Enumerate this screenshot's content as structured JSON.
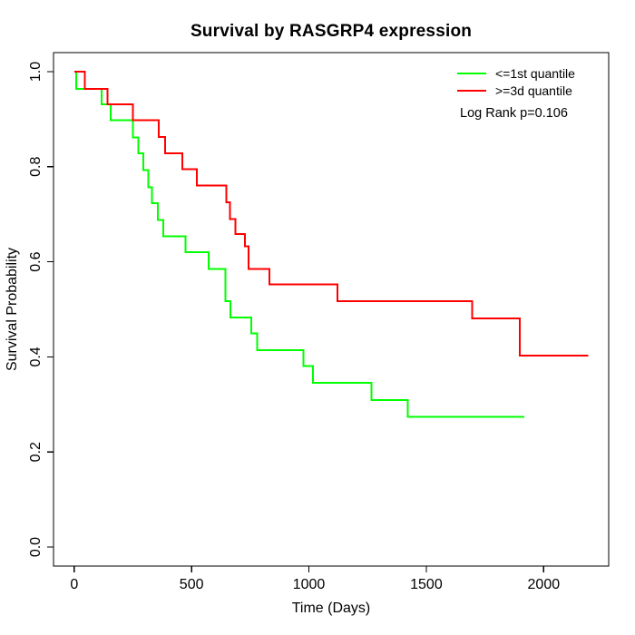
{
  "page": {
    "title": "Survival by RASGRP4 expression"
  },
  "legend": {
    "annotation": "Log Rank p=0.106"
  },
  "chart_data": {
    "type": "line",
    "subtype": "kaplan_meier_step_curve",
    "title": "Survival by RASGRP4 expression",
    "xlabel": "Time (Days)",
    "ylabel": "Survival Probability",
    "xticks": [
      "0",
      "500",
      "1000",
      "1500",
      "2000"
    ],
    "yticks": [
      "0.0",
      "0.2",
      "0.4",
      "0.6",
      "0.8",
      "1.0"
    ],
    "xlim": [
      -88,
      2277
    ],
    "ylim": [
      -0.04,
      1.04
    ],
    "grid": false,
    "legend_position": "top-right",
    "axis_color": "#000000",
    "series": [
      {
        "name": "<=1st quantile",
        "color": "#00FF00",
        "end_time": 1917,
        "steps": [
          [
            0,
            1.0
          ],
          [
            8,
            0.964
          ],
          [
            116,
            0.931
          ],
          [
            155,
            0.898
          ],
          [
            251,
            0.862
          ],
          [
            274,
            0.828
          ],
          [
            295,
            0.793
          ],
          [
            316,
            0.757
          ],
          [
            332,
            0.723
          ],
          [
            357,
            0.688
          ],
          [
            380,
            0.654
          ],
          [
            474,
            0.62
          ],
          [
            573,
            0.585
          ],
          [
            644,
            0.517
          ],
          [
            666,
            0.483
          ],
          [
            754,
            0.449
          ],
          [
            780,
            0.414
          ],
          [
            976,
            0.381
          ],
          [
            1018,
            0.345
          ],
          [
            1267,
            0.309
          ],
          [
            1422,
            0.274
          ]
        ]
      },
      {
        "name": ">=3d quantile",
        "color": "#FF0000",
        "end_time": 2191,
        "steps": [
          [
            0,
            1.0
          ],
          [
            45,
            0.964
          ],
          [
            142,
            0.931
          ],
          [
            251,
            0.898
          ],
          [
            361,
            0.863
          ],
          [
            387,
            0.828
          ],
          [
            461,
            0.795
          ],
          [
            522,
            0.76
          ],
          [
            648,
            0.725
          ],
          [
            664,
            0.69
          ],
          [
            687,
            0.658
          ],
          [
            728,
            0.633
          ],
          [
            742,
            0.585
          ],
          [
            831,
            0.552
          ],
          [
            1122,
            0.517
          ],
          [
            1695,
            0.481
          ],
          [
            1899,
            0.403
          ]
        ]
      }
    ]
  }
}
